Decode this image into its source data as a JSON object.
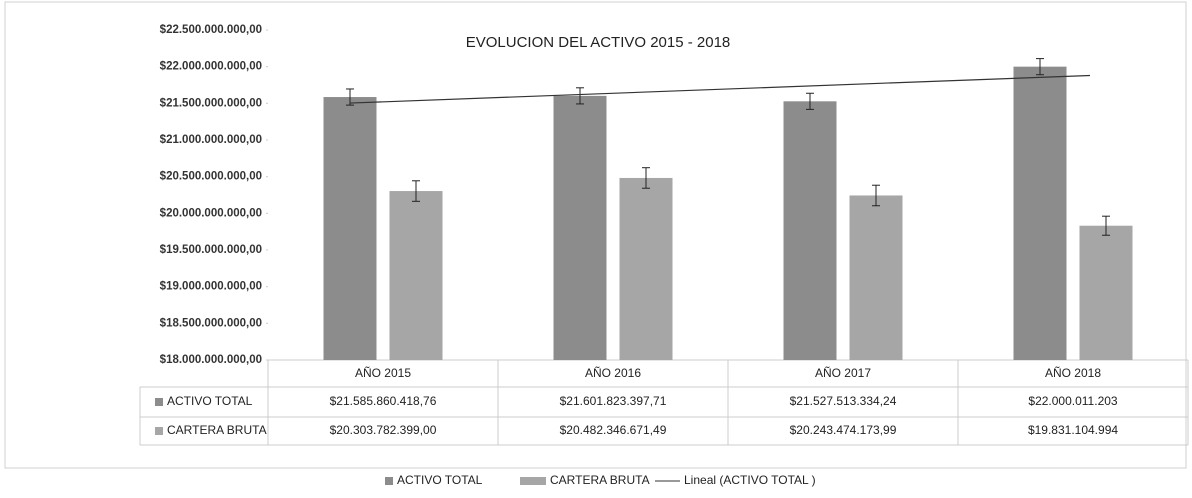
{
  "chart_data": {
    "type": "bar",
    "title": "EVOLUCION DEL ACTIVO  2015 - 2018",
    "categories": [
      "AÑO  2015",
      "AÑO  2016",
      "AÑO 2017",
      "AÑO 2018"
    ],
    "series": [
      {
        "name": "ACTIVO TOTAL",
        "color": "#8c8c8c",
        "values": [
          21585860418.76,
          21601823397.71,
          21527513334.24,
          22000011203
        ],
        "value_labels": [
          "$21.585.860.418,76",
          "$21.601.823.397,71",
          "$21.527.513.334,24",
          "$22.000.011.203"
        ],
        "errors": [
          110000000,
          110000000,
          110000000,
          110000000
        ]
      },
      {
        "name": "CARTERA BRUTA",
        "color": "#a6a6a6",
        "values": [
          20303782399.0,
          20482346671.49,
          20243474173.99,
          19831104994
        ],
        "value_labels": [
          "$20.303.782.399,00",
          "$20.482.346.671,49",
          "$20.243.474.173,99",
          "$19.831.104.994"
        ],
        "errors": [
          140000000,
          140000000,
          140000000,
          130000000
        ]
      }
    ],
    "trendline": {
      "label": "Lineal (ACTIVO TOTAL )",
      "series": 0,
      "kind": "linear",
      "color": "#333333"
    },
    "ylim": [
      18000000000,
      22500000000
    ],
    "yticks": [
      {
        "value": 18000000000,
        "label": "$18.000.000.000,00"
      },
      {
        "value": 18500000000,
        "label": "$18.500.000.000,00"
      },
      {
        "value": 19000000000,
        "label": "$19.000.000.000,00"
      },
      {
        "value": 19500000000,
        "label": "$19.500.000.000,00"
      },
      {
        "value": 20000000000,
        "label": "$20.000.000.000,00"
      },
      {
        "value": 20500000000,
        "label": "$20.500.000.000,00"
      },
      {
        "value": 21000000000,
        "label": "$21.000.000.000,00"
      },
      {
        "value": 21500000000,
        "label": "$21.500.000.000,00"
      },
      {
        "value": 22000000000,
        "label": "$22.000.000.000,00"
      },
      {
        "value": 22500000000,
        "label": "$22.500.000.000,00"
      }
    ],
    "grid": false,
    "legend": "bottom",
    "data_table": true
  }
}
